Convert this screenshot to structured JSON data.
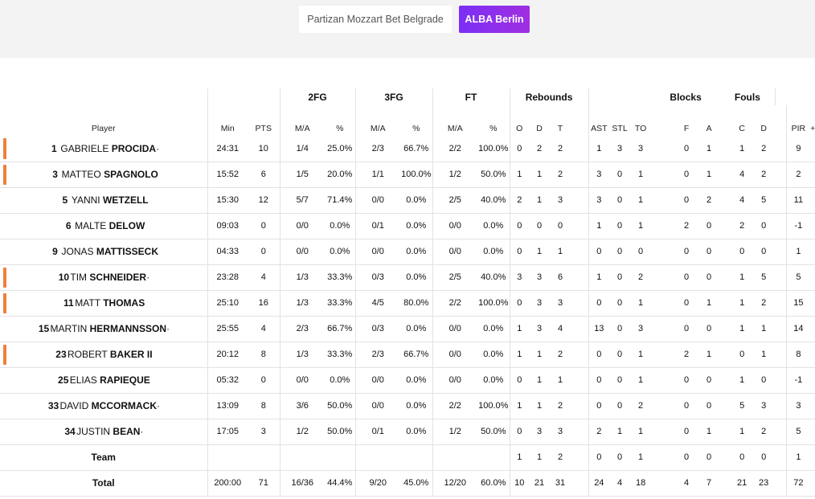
{
  "team_tabs": {
    "home": "Partizan Mozzart Bet Belgrade",
    "away": "ALBA Berlin"
  },
  "groups": {
    "fg2": "2FG",
    "fg3": "3FG",
    "ft": "FT",
    "rebounds": "Rebounds",
    "blocks": "Blocks",
    "fouls": "Fouls"
  },
  "columns": {
    "player": "Player",
    "min": "Min",
    "pts": "PTS",
    "fg2_ma": "M/A",
    "fg2_pct": "%",
    "fg3_ma": "M/A",
    "fg3_pct": "%",
    "ft_ma": "M/A",
    "ft_pct": "%",
    "o": "O",
    "d": "D",
    "t": "T",
    "ast": "AST",
    "stl": "STL",
    "to": "TO",
    "f": "F",
    "a": "A",
    "c": "C",
    "fd": "D",
    "pir": "PIR",
    "pm": "+/-"
  },
  "players": [
    {
      "num": "1",
      "first": "Gabriele",
      "last": "Procida",
      "suffix": "·",
      "starter": true,
      "min": "24:31",
      "pts": "10",
      "fg2_ma": "1/4",
      "fg2_pct": "25.0%",
      "fg3_ma": "2/3",
      "fg3_pct": "66.7%",
      "ft_ma": "2/2",
      "ft_pct": "100.0%",
      "o": "0",
      "d": "2",
      "t": "2",
      "ast": "1",
      "stl": "3",
      "to": "3",
      "f": "0",
      "a": "1",
      "c": "1",
      "fd": "2",
      "pir": "9",
      "pm": ""
    },
    {
      "num": "3",
      "first": "Matteo",
      "last": "Spagnolo",
      "suffix": "",
      "starter": true,
      "min": "15:52",
      "pts": "6",
      "fg2_ma": "1/5",
      "fg2_pct": "20.0%",
      "fg3_ma": "1/1",
      "fg3_pct": "100.0%",
      "ft_ma": "1/2",
      "ft_pct": "50.0%",
      "o": "1",
      "d": "1",
      "t": "2",
      "ast": "3",
      "stl": "0",
      "to": "1",
      "f": "0",
      "a": "1",
      "c": "4",
      "fd": "2",
      "pir": "2",
      "pm": ""
    },
    {
      "num": "5",
      "first": "Yanni",
      "last": "Wetzell",
      "suffix": "",
      "starter": false,
      "min": "15:30",
      "pts": "12",
      "fg2_ma": "5/7",
      "fg2_pct": "71.4%",
      "fg3_ma": "0/0",
      "fg3_pct": "0.0%",
      "ft_ma": "2/5",
      "ft_pct": "40.0%",
      "o": "2",
      "d": "1",
      "t": "3",
      "ast": "3",
      "stl": "0",
      "to": "1",
      "f": "0",
      "a": "2",
      "c": "4",
      "fd": "5",
      "pir": "11",
      "pm": ""
    },
    {
      "num": "6",
      "first": "Malte",
      "last": "Delow",
      "suffix": "",
      "starter": false,
      "min": "09:03",
      "pts": "0",
      "fg2_ma": "0/0",
      "fg2_pct": "0.0%",
      "fg3_ma": "0/1",
      "fg3_pct": "0.0%",
      "ft_ma": "0/0",
      "ft_pct": "0.0%",
      "o": "0",
      "d": "0",
      "t": "0",
      "ast": "1",
      "stl": "0",
      "to": "1",
      "f": "2",
      "a": "0",
      "c": "2",
      "fd": "0",
      "pir": "-1",
      "pm": ""
    },
    {
      "num": "9",
      "first": "Jonas",
      "last": "Mattisseck",
      "suffix": "",
      "starter": false,
      "min": "04:33",
      "pts": "0",
      "fg2_ma": "0/0",
      "fg2_pct": "0.0%",
      "fg3_ma": "0/0",
      "fg3_pct": "0.0%",
      "ft_ma": "0/0",
      "ft_pct": "0.0%",
      "o": "0",
      "d": "1",
      "t": "1",
      "ast": "0",
      "stl": "0",
      "to": "0",
      "f": "0",
      "a": "0",
      "c": "0",
      "fd": "0",
      "pir": "1",
      "pm": ""
    },
    {
      "num": "10",
      "first": "Tim",
      "last": "Schneider",
      "suffix": "·",
      "starter": true,
      "min": "23:28",
      "pts": "4",
      "fg2_ma": "1/3",
      "fg2_pct": "33.3%",
      "fg3_ma": "0/3",
      "fg3_pct": "0.0%",
      "ft_ma": "2/5",
      "ft_pct": "40.0%",
      "o": "3",
      "d": "3",
      "t": "6",
      "ast": "1",
      "stl": "0",
      "to": "2",
      "f": "0",
      "a": "0",
      "c": "1",
      "fd": "5",
      "pir": "5",
      "pm": ""
    },
    {
      "num": "11",
      "first": "Matt",
      "last": "Thomas",
      "suffix": "",
      "starter": true,
      "min": "25:10",
      "pts": "16",
      "fg2_ma": "1/3",
      "fg2_pct": "33.3%",
      "fg3_ma": "4/5",
      "fg3_pct": "80.0%",
      "ft_ma": "2/2",
      "ft_pct": "100.0%",
      "o": "0",
      "d": "3",
      "t": "3",
      "ast": "0",
      "stl": "0",
      "to": "1",
      "f": "0",
      "a": "1",
      "c": "1",
      "fd": "2",
      "pir": "15",
      "pm": ""
    },
    {
      "num": "15",
      "first": "Martin",
      "last": "Hermannsson",
      "suffix": "·",
      "starter": false,
      "min": "25:55",
      "pts": "4",
      "fg2_ma": "2/3",
      "fg2_pct": "66.7%",
      "fg3_ma": "0/3",
      "fg3_pct": "0.0%",
      "ft_ma": "0/0",
      "ft_pct": "0.0%",
      "o": "1",
      "d": "3",
      "t": "4",
      "ast": "13",
      "stl": "0",
      "to": "3",
      "f": "0",
      "a": "0",
      "c": "1",
      "fd": "1",
      "pir": "14",
      "pm": ""
    },
    {
      "num": "23",
      "first": "Robert",
      "last": "Baker II",
      "suffix": "",
      "starter": true,
      "min": "20:12",
      "pts": "8",
      "fg2_ma": "1/3",
      "fg2_pct": "33.3%",
      "fg3_ma": "2/3",
      "fg3_pct": "66.7%",
      "ft_ma": "0/0",
      "ft_pct": "0.0%",
      "o": "1",
      "d": "1",
      "t": "2",
      "ast": "0",
      "stl": "0",
      "to": "1",
      "f": "2",
      "a": "1",
      "c": "0",
      "fd": "1",
      "pir": "8",
      "pm": ""
    },
    {
      "num": "25",
      "first": "Elias",
      "last": "Rapieque",
      "suffix": "",
      "starter": false,
      "min": "05:32",
      "pts": "0",
      "fg2_ma": "0/0",
      "fg2_pct": "0.0%",
      "fg3_ma": "0/0",
      "fg3_pct": "0.0%",
      "ft_ma": "0/0",
      "ft_pct": "0.0%",
      "o": "0",
      "d": "1",
      "t": "1",
      "ast": "0",
      "stl": "0",
      "to": "1",
      "f": "0",
      "a": "0",
      "c": "1",
      "fd": "0",
      "pir": "-1",
      "pm": ""
    },
    {
      "num": "33",
      "first": "David",
      "last": "McCormack",
      "suffix": "·",
      "starter": false,
      "min": "13:09",
      "pts": "8",
      "fg2_ma": "3/6",
      "fg2_pct": "50.0%",
      "fg3_ma": "0/0",
      "fg3_pct": "0.0%",
      "ft_ma": "2/2",
      "ft_pct": "100.0%",
      "o": "1",
      "d": "1",
      "t": "2",
      "ast": "0",
      "stl": "0",
      "to": "2",
      "f": "0",
      "a": "0",
      "c": "5",
      "fd": "3",
      "pir": "3",
      "pm": ""
    },
    {
      "num": "34",
      "first": "Justin",
      "last": "Bean",
      "suffix": "·",
      "starter": false,
      "min": "17:05",
      "pts": "3",
      "fg2_ma": "1/2",
      "fg2_pct": "50.0%",
      "fg3_ma": "0/1",
      "fg3_pct": "0.0%",
      "ft_ma": "1/2",
      "ft_pct": "50.0%",
      "o": "0",
      "d": "3",
      "t": "3",
      "ast": "2",
      "stl": "1",
      "to": "1",
      "f": "0",
      "a": "1",
      "c": "1",
      "fd": "2",
      "pir": "5",
      "pm": ""
    }
  ],
  "team_row": {
    "label": "Team",
    "min": "",
    "pts": "",
    "fg2_ma": "",
    "fg2_pct": "",
    "fg3_ma": "",
    "fg3_pct": "",
    "ft_ma": "",
    "ft_pct": "",
    "o": "1",
    "d": "1",
    "t": "2",
    "ast": "0",
    "stl": "0",
    "to": "1",
    "f": "0",
    "a": "0",
    "c": "0",
    "fd": "0",
    "pir": "1",
    "pm": ""
  },
  "total_row": {
    "label": "Total",
    "min": "200:00",
    "pts": "71",
    "fg2_ma": "16/36",
    "fg2_pct": "44.4%",
    "fg3_ma": "9/20",
    "fg3_pct": "45.0%",
    "ft_ma": "12/20",
    "ft_pct": "60.0%",
    "o": "10",
    "d": "21",
    "t": "31",
    "ast": "24",
    "stl": "4",
    "to": "18",
    "f": "4",
    "a": "7",
    "c": "21",
    "fd": "23",
    "pir": "72",
    "pm": ""
  },
  "colors": {
    "starter_marker": "#f07f3c",
    "active_tab": "#8a2be2"
  }
}
